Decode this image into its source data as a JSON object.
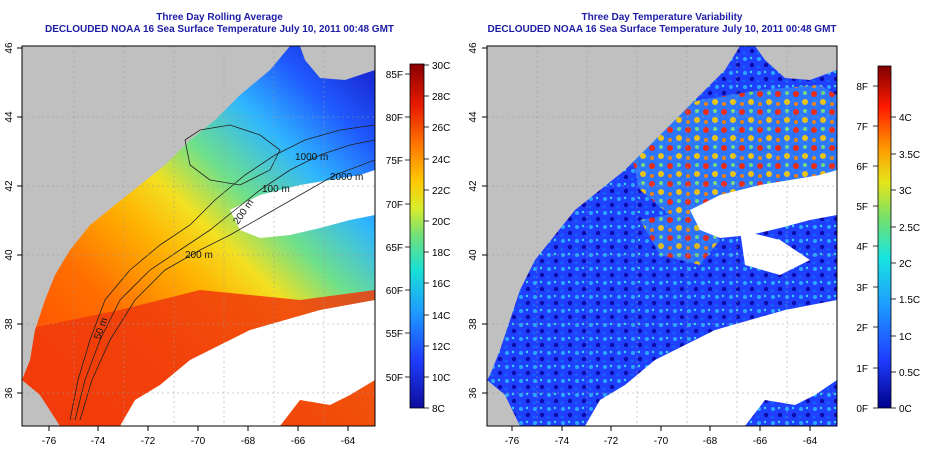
{
  "left_panel": {
    "title_line1": "Three Day Rolling Average",
    "title_line2": "DECLOUDED NOAA 16 Sea Surface Temperature July 10, 2011 00:48 GMT",
    "x_ticks": [
      "-76",
      "-74",
      "-72",
      "-70",
      "-68",
      "-66",
      "-64"
    ],
    "y_ticks": [
      "36",
      "38",
      "40",
      "42",
      "44",
      "46"
    ],
    "colorbar_f": [
      "50F",
      "55F",
      "60F",
      "65F",
      "70F",
      "75F",
      "80F",
      "85F"
    ],
    "colorbar_c": [
      "8C",
      "10C",
      "12C",
      "14C",
      "16C",
      "18C",
      "20C",
      "22C",
      "24C",
      "26C",
      "28C",
      "30C"
    ],
    "contour_labels": [
      "1000 m",
      "2000 m",
      "100 m",
      "200 m",
      "50 m",
      "200 m"
    ]
  },
  "right_panel": {
    "title_line1": "Three Day Temperature Variability",
    "title_line2": "DECLOUDED NOAA 16 Sea Surface Temperature July 10, 2011 00:48 GMT",
    "x_ticks": [
      "-76",
      "-74",
      "-72",
      "-70",
      "-68",
      "-66",
      "-64"
    ],
    "y_ticks": [
      "36",
      "38",
      "40",
      "42",
      "44",
      "46"
    ],
    "colorbar_f": [
      "0F",
      "1F",
      "2F",
      "3F",
      "4F",
      "5F",
      "6F",
      "7F",
      "8F"
    ],
    "colorbar_c": [
      "0C",
      "0.5C",
      "1C",
      "1.5C",
      "2C",
      "2.5C",
      "3C",
      "3.5C",
      "4C"
    ]
  },
  "colors": {
    "title": "#1c1ca6",
    "land": "#c0c0c0",
    "cloud": "#ffffff"
  }
}
